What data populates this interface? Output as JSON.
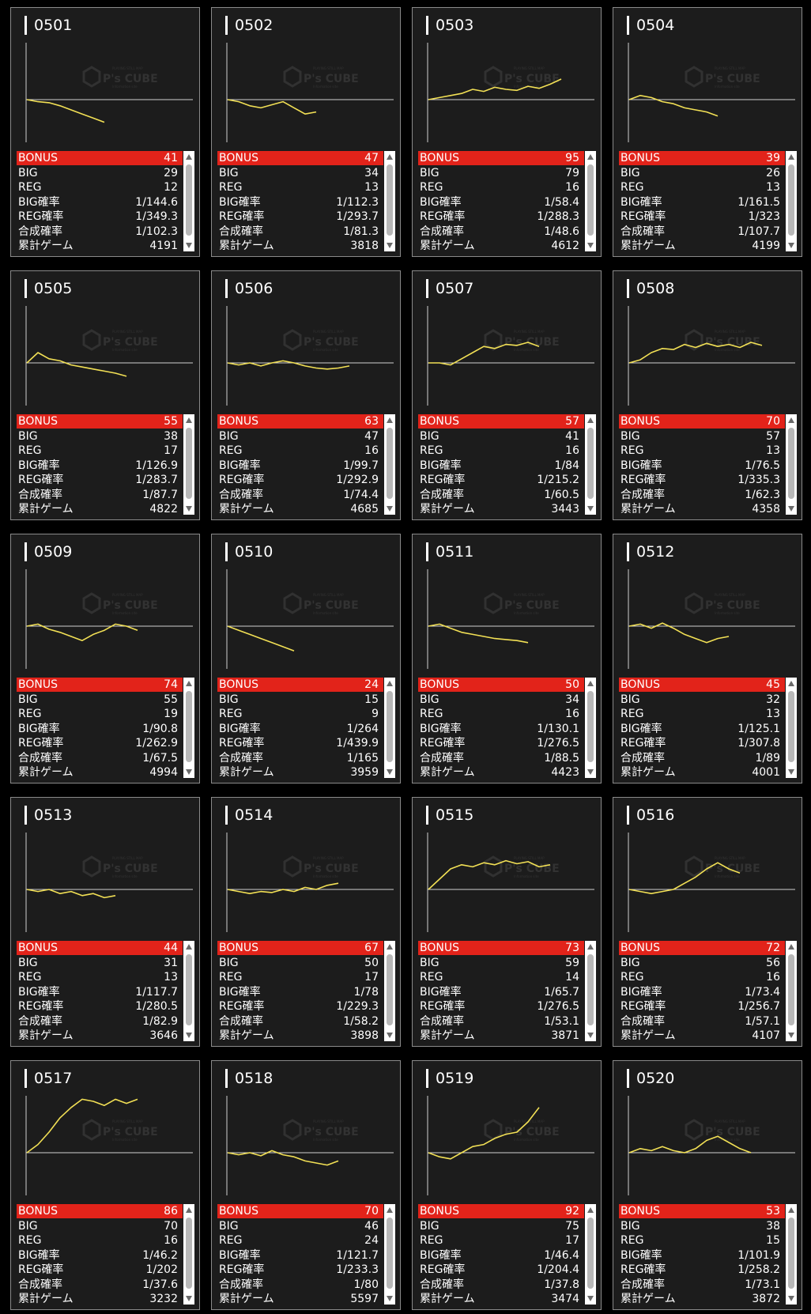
{
  "colors": {
    "background": "#000000",
    "card": "#1c1c1c",
    "bonus_bar": "#e2231a",
    "graph_line": "#f2e055",
    "axis": "#cfcfcf",
    "watermark": "#444444"
  },
  "watermark": {
    "brand": "P's CUBE",
    "tagline_top": "PLAYING STILL MAP",
    "tagline_bottom": "Information site",
    "icon": "cube-logo-icon"
  },
  "labels": {
    "bonus": "BONUS",
    "big": "BIG",
    "reg": "REG",
    "big_prob": "BIG確率",
    "reg_prob": "REG確率",
    "combined_prob": "合成確率",
    "total_games": "累計ゲーム"
  },
  "machines": [
    {
      "id": "0501",
      "bonus": "41",
      "big": "29",
      "reg": "12",
      "big_prob": "1/144.6",
      "reg_prob": "1/349.3",
      "combined_prob": "1/102.3",
      "total_games": "4191",
      "graph": [
        0,
        -2,
        -3,
        -6,
        -10,
        -14,
        -18,
        -22
      ]
    },
    {
      "id": "0502",
      "bonus": "47",
      "big": "34",
      "reg": "13",
      "big_prob": "1/112.3",
      "reg_prob": "1/293.7",
      "combined_prob": "1/81.3",
      "total_games": "3818",
      "graph": [
        0,
        -2,
        -6,
        -8,
        -5,
        -2,
        -8,
        -14,
        -12
      ]
    },
    {
      "id": "0503",
      "bonus": "95",
      "big": "79",
      "reg": "16",
      "big_prob": "1/58.4",
      "reg_prob": "1/288.3",
      "combined_prob": "1/48.6",
      "total_games": "4612",
      "graph": [
        0,
        2,
        4,
        6,
        10,
        8,
        12,
        10,
        9,
        13,
        11,
        15,
        20
      ]
    },
    {
      "id": "0504",
      "bonus": "39",
      "big": "26",
      "reg": "13",
      "big_prob": "1/161.5",
      "reg_prob": "1/323",
      "combined_prob": "1/107.7",
      "total_games": "4199",
      "graph": [
        0,
        4,
        2,
        -2,
        -4,
        -8,
        -10,
        -12,
        -16
      ]
    },
    {
      "id": "0505",
      "bonus": "55",
      "big": "38",
      "reg": "17",
      "big_prob": "1/126.9",
      "reg_prob": "1/283.7",
      "combined_prob": "1/87.7",
      "total_games": "4822",
      "graph": [
        0,
        10,
        4,
        2,
        -2,
        -4,
        -6,
        -8,
        -10,
        -13
      ]
    },
    {
      "id": "0506",
      "bonus": "63",
      "big": "47",
      "reg": "16",
      "big_prob": "1/99.7",
      "reg_prob": "1/292.9",
      "combined_prob": "1/74.4",
      "total_games": "4685",
      "graph": [
        0,
        -2,
        0,
        -3,
        0,
        2,
        0,
        -3,
        -5,
        -6,
        -5,
        -3
      ]
    },
    {
      "id": "0507",
      "bonus": "57",
      "big": "41",
      "reg": "16",
      "big_prob": "1/84",
      "reg_prob": "1/215.2",
      "combined_prob": "1/60.5",
      "total_games": "3443",
      "graph": [
        0,
        0,
        -2,
        4,
        10,
        16,
        14,
        18,
        17,
        20,
        16
      ]
    },
    {
      "id": "0508",
      "bonus": "70",
      "big": "57",
      "reg": "13",
      "big_prob": "1/76.5",
      "reg_prob": "1/335.3",
      "combined_prob": "1/62.3",
      "total_games": "4358",
      "graph": [
        0,
        3,
        10,
        14,
        13,
        18,
        15,
        19,
        16,
        18,
        15,
        20,
        17
      ]
    },
    {
      "id": "0509",
      "bonus": "74",
      "big": "55",
      "reg": "19",
      "big_prob": "1/90.8",
      "reg_prob": "1/262.9",
      "combined_prob": "1/67.5",
      "total_games": "4994",
      "graph": [
        0,
        2,
        -3,
        -6,
        -10,
        -14,
        -8,
        -4,
        2,
        0,
        -4
      ]
    },
    {
      "id": "0510",
      "bonus": "24",
      "big": "15",
      "reg": "9",
      "big_prob": "1/264",
      "reg_prob": "1/439.9",
      "combined_prob": "1/165",
      "total_games": "3959",
      "graph": [
        0,
        -4,
        -8,
        -12,
        -16,
        -20,
        -24
      ]
    },
    {
      "id": "0511",
      "bonus": "50",
      "big": "34",
      "reg": "16",
      "big_prob": "1/130.1",
      "reg_prob": "1/276.5",
      "combined_prob": "1/88.5",
      "total_games": "4423",
      "graph": [
        0,
        2,
        -2,
        -6,
        -8,
        -10,
        -12,
        -13,
        -14,
        -16
      ]
    },
    {
      "id": "0512",
      "bonus": "45",
      "big": "32",
      "reg": "13",
      "big_prob": "1/125.1",
      "reg_prob": "1/307.8",
      "combined_prob": "1/89",
      "total_games": "4001",
      "graph": [
        0,
        2,
        -2,
        3,
        -2,
        -8,
        -12,
        -16,
        -12,
        -10
      ]
    },
    {
      "id": "0513",
      "bonus": "44",
      "big": "31",
      "reg": "13",
      "big_prob": "1/117.7",
      "reg_prob": "1/280.5",
      "combined_prob": "1/82.9",
      "total_games": "3646",
      "graph": [
        0,
        -2,
        0,
        -4,
        -2,
        -6,
        -4,
        -8,
        -6
      ]
    },
    {
      "id": "0514",
      "bonus": "67",
      "big": "50",
      "reg": "17",
      "big_prob": "1/78",
      "reg_prob": "1/229.3",
      "combined_prob": "1/58.2",
      "total_games": "3898",
      "graph": [
        0,
        -2,
        -4,
        -2,
        -3,
        0,
        -2,
        2,
        0,
        4,
        6
      ]
    },
    {
      "id": "0515",
      "bonus": "73",
      "big": "59",
      "reg": "14",
      "big_prob": "1/65.7",
      "reg_prob": "1/276.5",
      "combined_prob": "1/53.1",
      "total_games": "3871",
      "graph": [
        0,
        10,
        20,
        24,
        22,
        26,
        24,
        28,
        25,
        27,
        22,
        24
      ]
    },
    {
      "id": "0516",
      "bonus": "72",
      "big": "56",
      "reg": "16",
      "big_prob": "1/73.4",
      "reg_prob": "1/256.7",
      "combined_prob": "1/57.1",
      "total_games": "4107",
      "graph": [
        0,
        -2,
        -4,
        -2,
        0,
        6,
        12,
        20,
        26,
        20,
        16
      ]
    },
    {
      "id": "0517",
      "bonus": "86",
      "big": "70",
      "reg": "16",
      "big_prob": "1/46.2",
      "reg_prob": "1/202",
      "combined_prob": "1/37.6",
      "total_games": "3232",
      "graph": [
        0,
        8,
        20,
        34,
        44,
        52,
        50,
        46,
        52,
        48,
        52
      ]
    },
    {
      "id": "0518",
      "bonus": "70",
      "big": "46",
      "reg": "24",
      "big_prob": "1/121.7",
      "reg_prob": "1/233.3",
      "combined_prob": "1/80",
      "total_games": "5597",
      "graph": [
        0,
        -2,
        0,
        -3,
        2,
        -2,
        -4,
        -8,
        -10,
        -12,
        -8
      ]
    },
    {
      "id": "0519",
      "bonus": "92",
      "big": "75",
      "reg": "17",
      "big_prob": "1/46.4",
      "reg_prob": "1/204.4",
      "combined_prob": "1/37.8",
      "total_games": "3474",
      "graph": [
        0,
        -4,
        -6,
        0,
        6,
        8,
        14,
        18,
        20,
        30,
        44
      ]
    },
    {
      "id": "0520",
      "bonus": "53",
      "big": "38",
      "reg": "15",
      "big_prob": "1/101.9",
      "reg_prob": "1/258.2",
      "combined_prob": "1/73.1",
      "total_games": "3872",
      "graph": [
        0,
        4,
        2,
        6,
        2,
        0,
        4,
        12,
        16,
        10,
        4,
        0
      ]
    }
  ]
}
